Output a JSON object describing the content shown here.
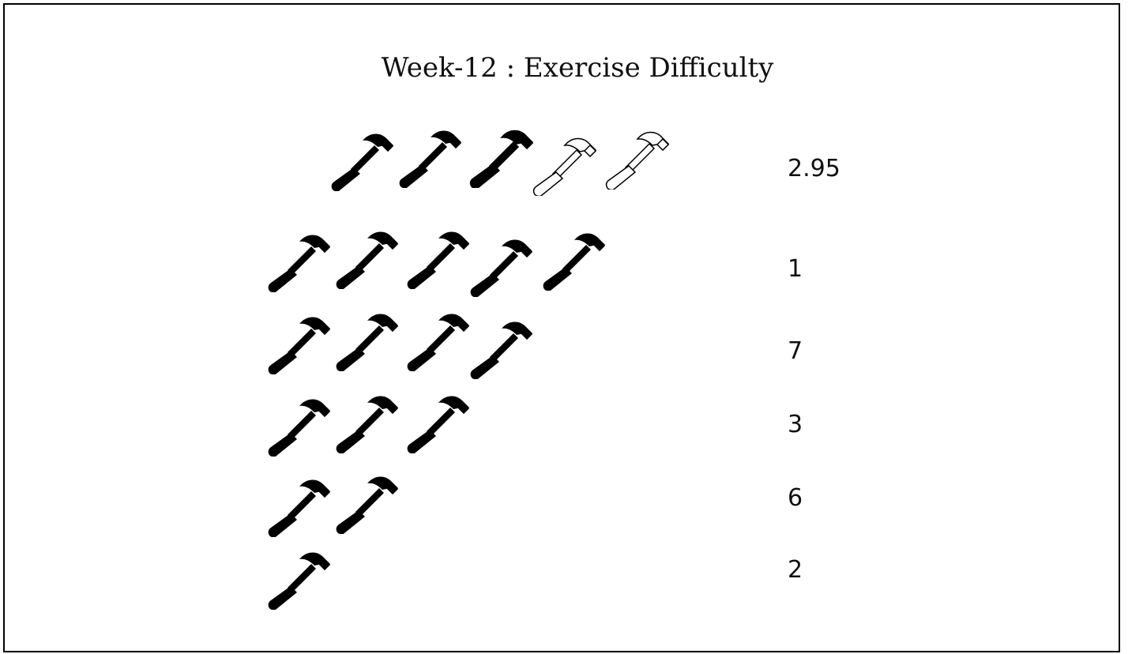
{
  "chart_data": {
    "type": "pictograph",
    "title": "Week-12 : Exercise Difficulty",
    "icon": "hammer-icon",
    "rows": [
      {
        "label": "2.95",
        "filled_fraction": 0.59,
        "icon_count": 5
      },
      {
        "label": "1",
        "filled_fraction": 1.0,
        "icon_count": 5
      },
      {
        "label": "7",
        "filled_fraction": 1.0,
        "icon_count": 4
      },
      {
        "label": "3",
        "filled_fraction": 1.0,
        "icon_count": 3
      },
      {
        "label": "6",
        "filled_fraction": 1.0,
        "icon_count": 2
      },
      {
        "label": "2",
        "filled_fraction": 1.0,
        "icon_count": 1
      }
    ]
  }
}
